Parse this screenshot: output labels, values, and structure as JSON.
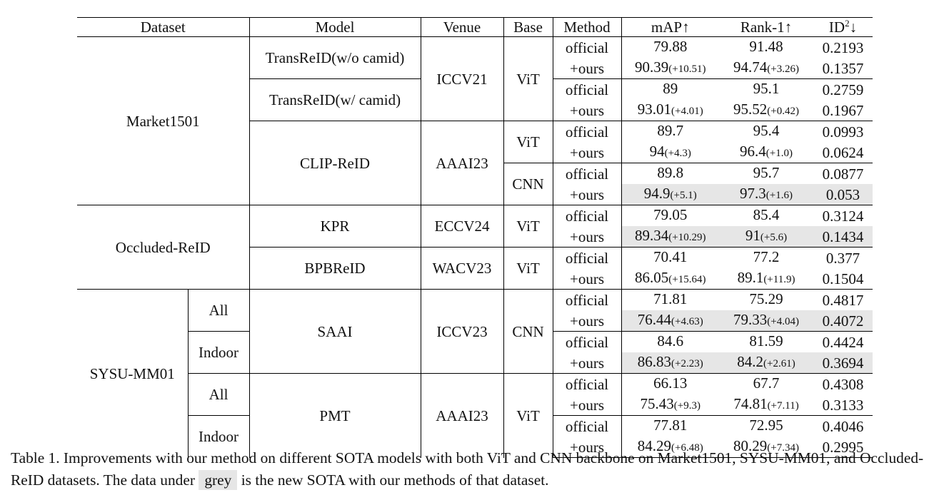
{
  "table": {
    "headers": {
      "dataset": "Dataset",
      "model": "Model",
      "venue": "Venue",
      "base": "Base",
      "method": "Method",
      "map": "mAP↑",
      "rank1": "Rank-1↑",
      "id2_base": "ID",
      "id2_sup": "2",
      "id2_arrow": "↓"
    },
    "groups": {
      "market1501": "Market1501",
      "occluded_reid": "Occluded-ReID",
      "sysu_mm01": "SYSU-MM01",
      "all_1": "All",
      "indoor_1": "Indoor",
      "all_2": "All",
      "indoor_2": "Indoor"
    },
    "models": {
      "transreid_wo": "TransReID(w/o camid)",
      "transreid_w": "TransReID(w/ camid)",
      "clip_reid": "CLIP-ReID",
      "kpr": "KPR",
      "bpbreid": "BPBReID",
      "saai": "SAAI",
      "pmt": "PMT"
    },
    "venues": {
      "iccv21": "ICCV21",
      "aaai23_a": "AAAI23",
      "eccv24": "ECCV24",
      "wacv23": "WACV23",
      "iccv23": "ICCV23",
      "aaai23_b": "AAAI23"
    },
    "bases": {
      "transreid": "ViT",
      "clip_vit": "ViT",
      "clip_cnn": "CNN",
      "kpr": "ViT",
      "bpbreid": "ViT",
      "saai": "CNN",
      "pmt": "ViT"
    },
    "rows": [
      {
        "method": "official",
        "map": "79.88",
        "map_delta": "",
        "rank1": "91.48",
        "rank1_delta": "",
        "id2": "0.2193"
      },
      {
        "method": "+ours",
        "map": "90.39",
        "map_delta": "(+10.51)",
        "rank1": "94.74",
        "rank1_delta": "(+3.26)",
        "id2": "0.1357"
      },
      {
        "method": "official",
        "map": "89",
        "map_delta": "",
        "rank1": "95.1",
        "rank1_delta": "",
        "id2": "0.2759"
      },
      {
        "method": "+ours",
        "map": "93.01",
        "map_delta": "(+4.01)",
        "rank1": "95.52",
        "rank1_delta": "(+0.42)",
        "id2": "0.1967"
      },
      {
        "method": "official",
        "map": "89.7",
        "map_delta": "",
        "rank1": "95.4",
        "rank1_delta": "",
        "id2": "0.0993"
      },
      {
        "method": "+ours",
        "map": "94",
        "map_delta": "(+4.3)",
        "rank1": "96.4",
        "rank1_delta": "(+1.0)",
        "id2": "0.0624"
      },
      {
        "method": "official",
        "map": "89.8",
        "map_delta": "",
        "rank1": "95.7",
        "rank1_delta": "",
        "id2": "0.0877"
      },
      {
        "method": "+ours",
        "map": "94.9",
        "map_delta": "(+5.1)",
        "rank1": "97.3",
        "rank1_delta": "(+1.6)",
        "id2": "0.053"
      },
      {
        "method": "official",
        "map": "79.05",
        "map_delta": "",
        "rank1": "85.4",
        "rank1_delta": "",
        "id2": "0.3124"
      },
      {
        "method": "+ours",
        "map": "89.34",
        "map_delta": "(+10.29)",
        "rank1": "91",
        "rank1_delta": "(+5.6)",
        "id2": "0.1434"
      },
      {
        "method": "official",
        "map": "70.41",
        "map_delta": "",
        "rank1": "77.2",
        "rank1_delta": "",
        "id2": "0.377"
      },
      {
        "method": "+ours",
        "map": "86.05",
        "map_delta": "(+15.64)",
        "rank1": "89.1",
        "rank1_delta": "(+11.9)",
        "id2": "0.1504"
      },
      {
        "method": "official",
        "map": "71.81",
        "map_delta": "",
        "rank1": "75.29",
        "rank1_delta": "",
        "id2": "0.4817"
      },
      {
        "method": "+ours",
        "map": "76.44",
        "map_delta": "(+4.63)",
        "rank1": "79.33",
        "rank1_delta": "(+4.04)",
        "id2": "0.4072"
      },
      {
        "method": "official",
        "map": "84.6",
        "map_delta": "",
        "rank1": "81.59",
        "rank1_delta": "",
        "id2": "0.4424"
      },
      {
        "method": "+ours",
        "map": "86.83",
        "map_delta": "(+2.23)",
        "rank1": "84.2",
        "rank1_delta": "(+2.61)",
        "id2": "0.3694"
      },
      {
        "method": "official",
        "map": "66.13",
        "map_delta": "",
        "rank1": "67.7",
        "rank1_delta": "",
        "id2": "0.4308"
      },
      {
        "method": "+ours",
        "map": "75.43",
        "map_delta": "(+9.3)",
        "rank1": "74.81",
        "rank1_delta": "(+7.11)",
        "id2": "0.3133"
      },
      {
        "method": "official",
        "map": "77.81",
        "map_delta": "",
        "rank1": "72.95",
        "rank1_delta": "",
        "id2": "0.4046"
      },
      {
        "method": "+ours",
        "map": "84.29",
        "map_delta": "(+6.48)",
        "rank1": "80.29",
        "rank1_delta": "(+7.34)",
        "id2": "0.2995"
      }
    ],
    "highlight_color": "#e6e6e6"
  },
  "caption": {
    "part1": "Table 1. Improvements with our method on different SOTA models with both ViT and CNN backbone on Market1501, SYSU-MM01, and Occluded-ReID datasets. The data under",
    "grey_word": "grey",
    "part2": "is the new SOTA with our methods of that dataset."
  }
}
